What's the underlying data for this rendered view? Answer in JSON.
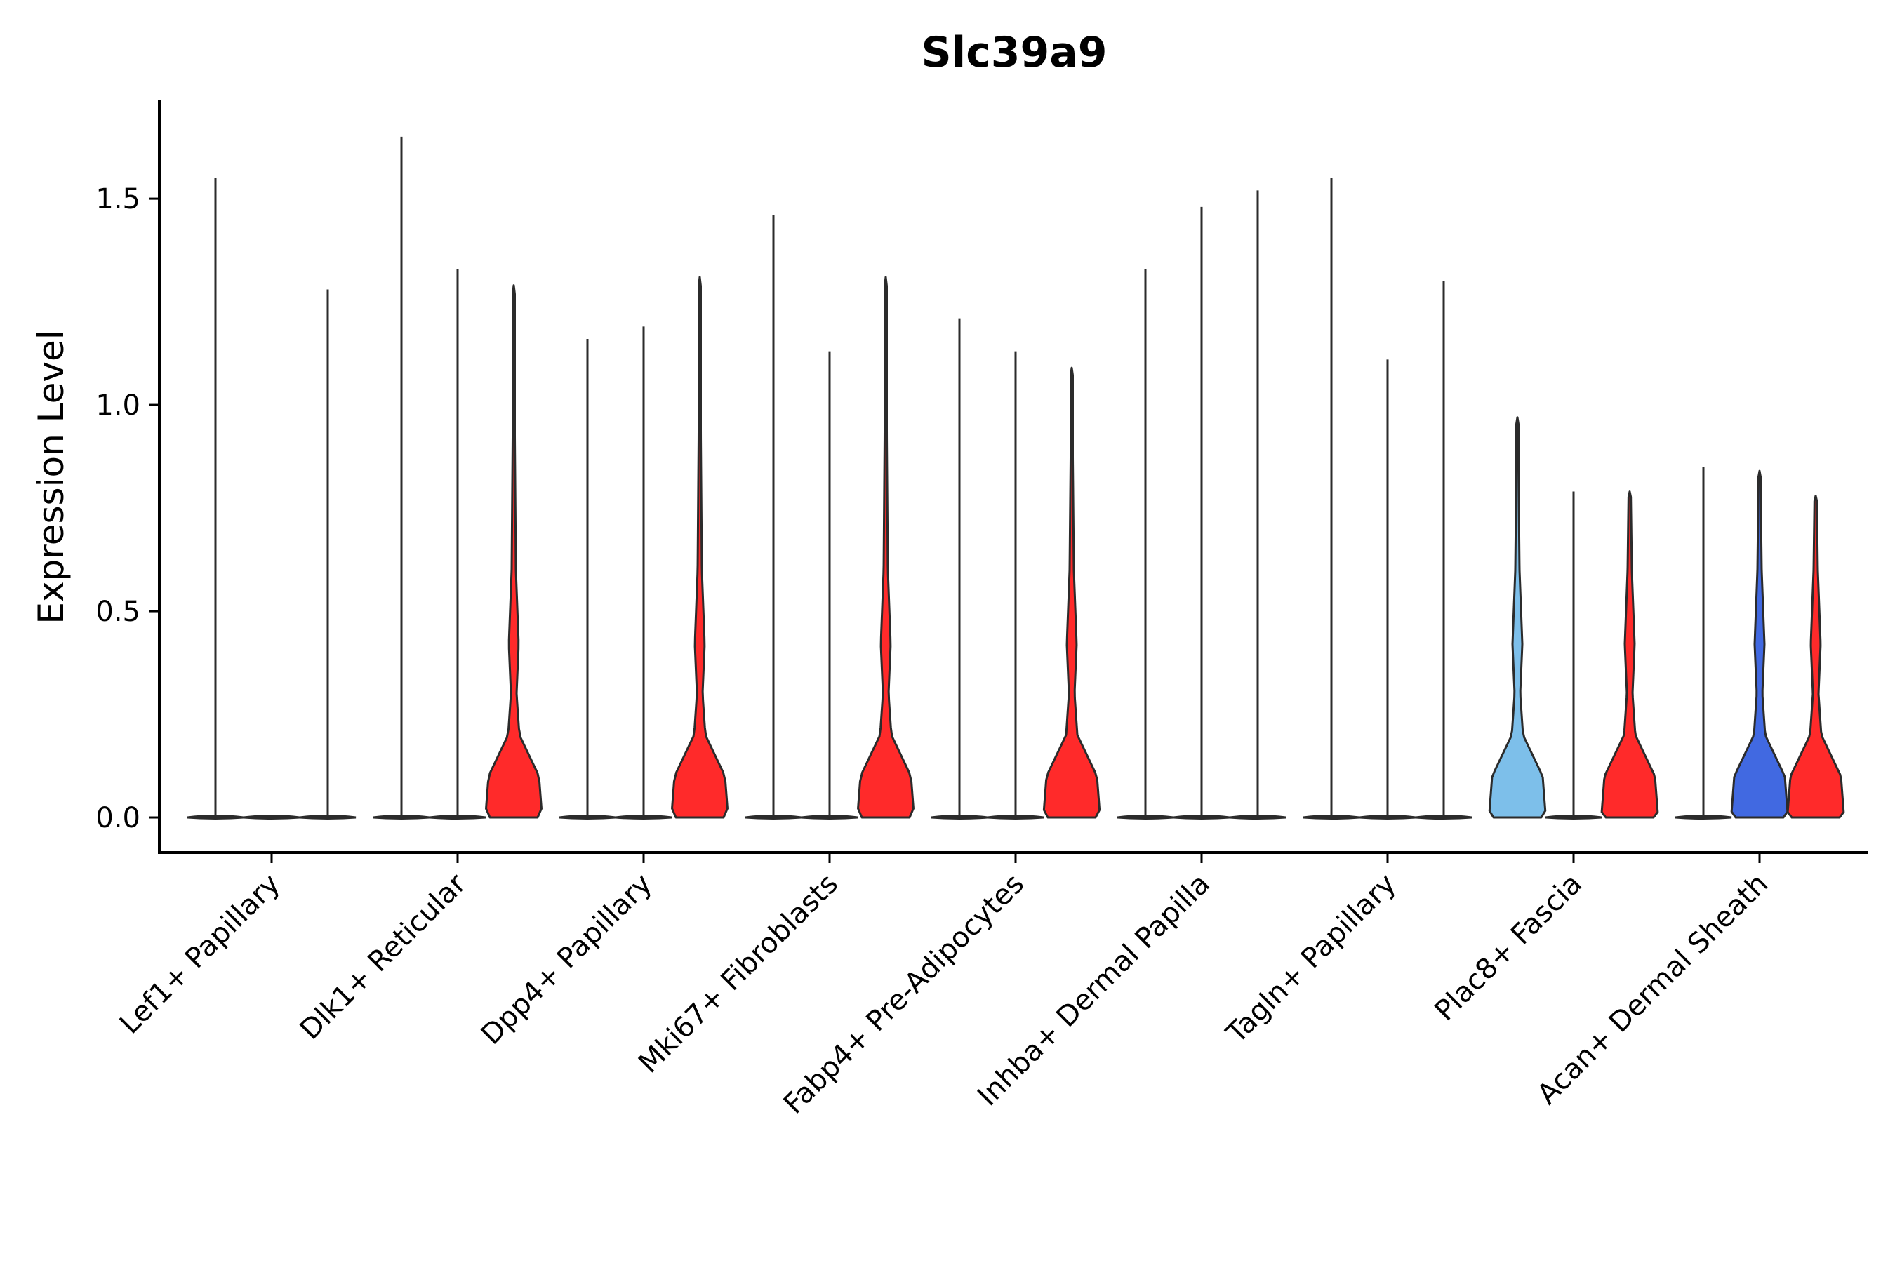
{
  "chart_data": {
    "type": "violin",
    "title": "Slc39a9",
    "xlabel": "",
    "ylabel": "Expression Level",
    "ylim": [
      -0.085,
      1.74
    ],
    "yticks": [
      0.0,
      0.5,
      1.0,
      1.5
    ],
    "ytick_labels": [
      "0.0",
      "0.5",
      "1.0",
      "1.5"
    ],
    "categories": [
      "Lef1+ Papillary",
      "Dlk1+ Reticular",
      "Dpp4+ Papillary",
      "Mki67+ Fibroblasts",
      "Fabp4+ Pre-Adipocytes",
      "Inhba+ Dermal Papilla",
      "Tagln+ Papillary",
      "Plac8+ Fascia",
      "Acan+ Dermal Sheath"
    ],
    "split_violins": [
      {
        "category": "Lef1+ Papillary",
        "subgroups": [
          {
            "max": 1.55,
            "shape": "flat",
            "color": "#ffffff"
          },
          {
            "max": 0.0,
            "shape": "flat",
            "color": "#ffffff"
          },
          {
            "max": 1.28,
            "shape": "flat",
            "color": "#ffffff"
          }
        ]
      },
      {
        "category": "Dlk1+ Reticular",
        "subgroups": [
          {
            "max": 1.65,
            "shape": "flat",
            "color": "#ffffff"
          },
          {
            "max": 1.33,
            "shape": "flat",
            "color": "#ffffff"
          },
          {
            "max": 1.29,
            "shape": "expressed",
            "color": "#ff2a2a"
          }
        ]
      },
      {
        "category": "Dpp4+ Papillary",
        "subgroups": [
          {
            "max": 1.16,
            "shape": "flat",
            "color": "#ffffff"
          },
          {
            "max": 1.19,
            "shape": "flat",
            "color": "#ffffff"
          },
          {
            "max": 1.31,
            "shape": "expressed",
            "color": "#ff2a2a"
          }
        ]
      },
      {
        "category": "Mki67+ Fibroblasts",
        "subgroups": [
          {
            "max": 1.46,
            "shape": "flat",
            "color": "#ffffff"
          },
          {
            "max": 1.13,
            "shape": "flat",
            "color": "#ffffff"
          },
          {
            "max": 1.31,
            "shape": "expressed",
            "color": "#ff2a2a"
          }
        ]
      },
      {
        "category": "Fabp4+ Pre-Adipocytes",
        "subgroups": [
          {
            "max": 1.21,
            "shape": "flat",
            "color": "#ffffff"
          },
          {
            "max": 1.13,
            "shape": "flat",
            "color": "#ffffff"
          },
          {
            "max": 1.09,
            "shape": "expressed",
            "color": "#ff2a2a"
          }
        ]
      },
      {
        "category": "Inhba+ Dermal Papilla",
        "subgroups": [
          {
            "max": 1.33,
            "shape": "flat",
            "color": "#ffffff"
          },
          {
            "max": 1.48,
            "shape": "flat",
            "color": "#ffffff"
          },
          {
            "max": 1.52,
            "shape": "flat",
            "color": "#ffffff"
          }
        ]
      },
      {
        "category": "Tagln+ Papillary",
        "subgroups": [
          {
            "max": 1.55,
            "shape": "flat",
            "color": "#ffffff"
          },
          {
            "max": 1.11,
            "shape": "flat",
            "color": "#ffffff"
          },
          {
            "max": 1.3,
            "shape": "flat",
            "color": "#ffffff"
          }
        ]
      },
      {
        "category": "Plac8+ Fascia",
        "subgroups": [
          {
            "max": 0.97,
            "shape": "expressed",
            "color": "#7dbfea"
          },
          {
            "max": 0.79,
            "shape": "flat",
            "color": "#ffffff"
          },
          {
            "max": 0.79,
            "shape": "expressed",
            "color": "#ff2a2a"
          }
        ]
      },
      {
        "category": "Acan+ Dermal Sheath",
        "subgroups": [
          {
            "max": 0.85,
            "shape": "flat",
            "color": "#ffffff"
          },
          {
            "max": 0.84,
            "shape": "expressed",
            "color": "#4169e1"
          },
          {
            "max": 0.78,
            "shape": "expressed",
            "color": "#ff2a2a"
          }
        ]
      }
    ]
  }
}
